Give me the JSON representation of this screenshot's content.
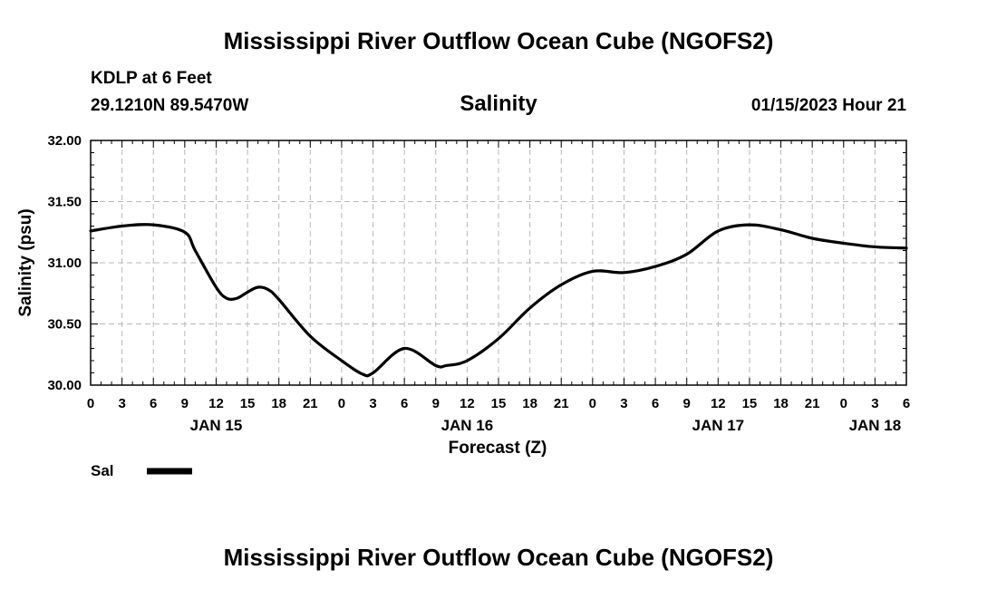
{
  "page": {
    "title_top": "Mississippi River Outflow Ocean Cube (NGOFS2)",
    "title_bottom": "Mississippi River Outflow Ocean Cube (NGOFS2)",
    "station": "KDLP at 6 Feet",
    "coords": "29.1210N  89.5470W",
    "variable": "Salinity",
    "datetime": "01/15/2023 Hour 21"
  },
  "legend": {
    "label": "Sal",
    "color": "#000000"
  },
  "chart_data": {
    "type": "line",
    "title": "Salinity",
    "xlabel": "Forecast (Z)",
    "ylabel": "Salinity (psu)",
    "xlim": [
      0,
      78
    ],
    "ylim": [
      30.0,
      32.0
    ],
    "grid": true,
    "yticks": [
      30.0,
      30.5,
      31.0,
      31.5,
      32.0
    ],
    "ytick_labels": [
      "30.00",
      "30.50",
      "31.00",
      "31.50",
      "32.00"
    ],
    "xticks": [
      0,
      3,
      6,
      9,
      12,
      15,
      18,
      21,
      24,
      27,
      30,
      33,
      36,
      39,
      42,
      45,
      48,
      51,
      54,
      57,
      60,
      63,
      66,
      69,
      72,
      75,
      78
    ],
    "xtick_labels": [
      "0",
      "3",
      "6",
      "9",
      "12",
      "15",
      "18",
      "21",
      "0",
      "3",
      "6",
      "9",
      "12",
      "15",
      "18",
      "21",
      "0",
      "3",
      "6",
      "9",
      "12",
      "15",
      "18",
      "21",
      "0",
      "3",
      "6"
    ],
    "day_labels": [
      {
        "x": 12,
        "label": "JAN 15"
      },
      {
        "x": 36,
        "label": "JAN 16"
      },
      {
        "x": 60,
        "label": "JAN 17"
      },
      {
        "x": 75,
        "label": "JAN 18"
      }
    ],
    "series": [
      {
        "name": "Sal",
        "x": [
          0,
          3,
          6,
          9,
          10,
          12,
          13,
          14,
          15,
          16,
          17,
          18,
          21,
          24,
          26,
          27,
          30,
          33,
          34,
          36,
          39,
          42,
          45,
          48,
          51,
          54,
          57,
          60,
          63,
          66,
          69,
          72,
          75,
          78
        ],
        "values": [
          31.26,
          31.3,
          31.31,
          31.25,
          31.1,
          30.8,
          30.71,
          30.71,
          30.76,
          30.8,
          30.78,
          30.7,
          30.4,
          30.2,
          30.09,
          30.1,
          30.3,
          30.16,
          30.16,
          30.2,
          30.38,
          30.63,
          30.82,
          30.93,
          30.92,
          30.97,
          31.07,
          31.26,
          31.31,
          31.27,
          31.2,
          31.16,
          31.13,
          31.12
        ]
      }
    ]
  }
}
